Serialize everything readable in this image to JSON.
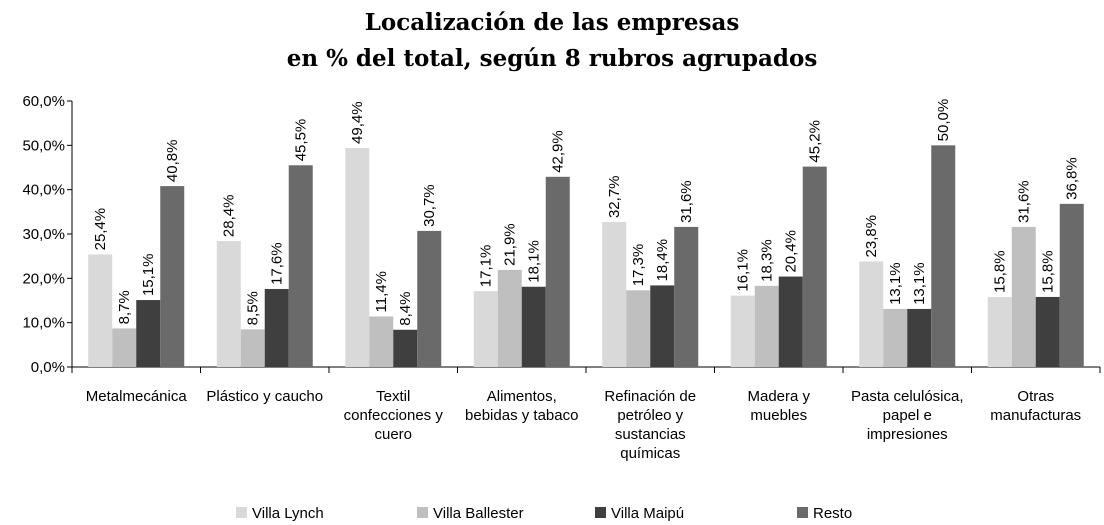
{
  "chart_data": {
    "type": "bar",
    "title": "Localización de las empresas",
    "subtitle": "en % del total, según 8 rubros agrupados",
    "categories": [
      "Metalmecánica",
      "Plástico y caucho",
      "Textil confecciones y cuero",
      "Alimentos, bebidas y tabaco",
      "Refinación de petróleo y sustancias químicas",
      "Madera y muebles",
      "Pasta celulósica, papel e impresiones",
      "Otras manufacturas"
    ],
    "series": [
      {
        "name": "Villa Lynch",
        "color": "#d9d9d9",
        "values": [
          25.4,
          28.4,
          49.4,
          17.1,
          32.7,
          16.1,
          23.8,
          15.8
        ],
        "value_labels": [
          "25,4%",
          "28,4%",
          "49,4%",
          "17,1%",
          "32,7%",
          "16,1%",
          "23,8%",
          "15,8%"
        ]
      },
      {
        "name": "Villa Ballester",
        "color": "#bfbfbf",
        "values": [
          8.7,
          8.5,
          11.4,
          21.9,
          17.3,
          18.3,
          13.1,
          31.6
        ],
        "value_labels": [
          "8,7%",
          "8,5%",
          "11,4%",
          "21,9%",
          "17,3%",
          "18,3%",
          "13,1%",
          "31,6%"
        ]
      },
      {
        "name": "Villa Maipú",
        "color": "#3f3f3f",
        "values": [
          15.1,
          17.6,
          8.4,
          18.1,
          18.4,
          20.4,
          13.1,
          15.8
        ],
        "value_labels": [
          "15,1%",
          "17,6%",
          "8,4%",
          "18,1%",
          "18,4%",
          "20,4%",
          "13,1%",
          "15,8%"
        ]
      },
      {
        "name": "Resto",
        "color": "#6a6a6a",
        "values": [
          40.8,
          45.5,
          30.7,
          42.9,
          31.6,
          45.2,
          50.0,
          36.8
        ],
        "value_labels": [
          "40,8%",
          "45,5%",
          "30,7%",
          "42,9%",
          "31,6%",
          "45,2%",
          "50,0%",
          "36,8%"
        ]
      }
    ],
    "ylim": [
      0,
      60
    ],
    "yticks": [
      {
        "value": 0,
        "label": "0,0%"
      },
      {
        "value": 10,
        "label": "10,0%"
      },
      {
        "value": 20,
        "label": "20,0%"
      },
      {
        "value": 30,
        "label": "30,0%"
      },
      {
        "value": 40,
        "label": "40,0%"
      },
      {
        "value": 50,
        "label": "50,0%"
      },
      {
        "value": 60,
        "label": "60,0%"
      }
    ],
    "legend": "bottom"
  }
}
